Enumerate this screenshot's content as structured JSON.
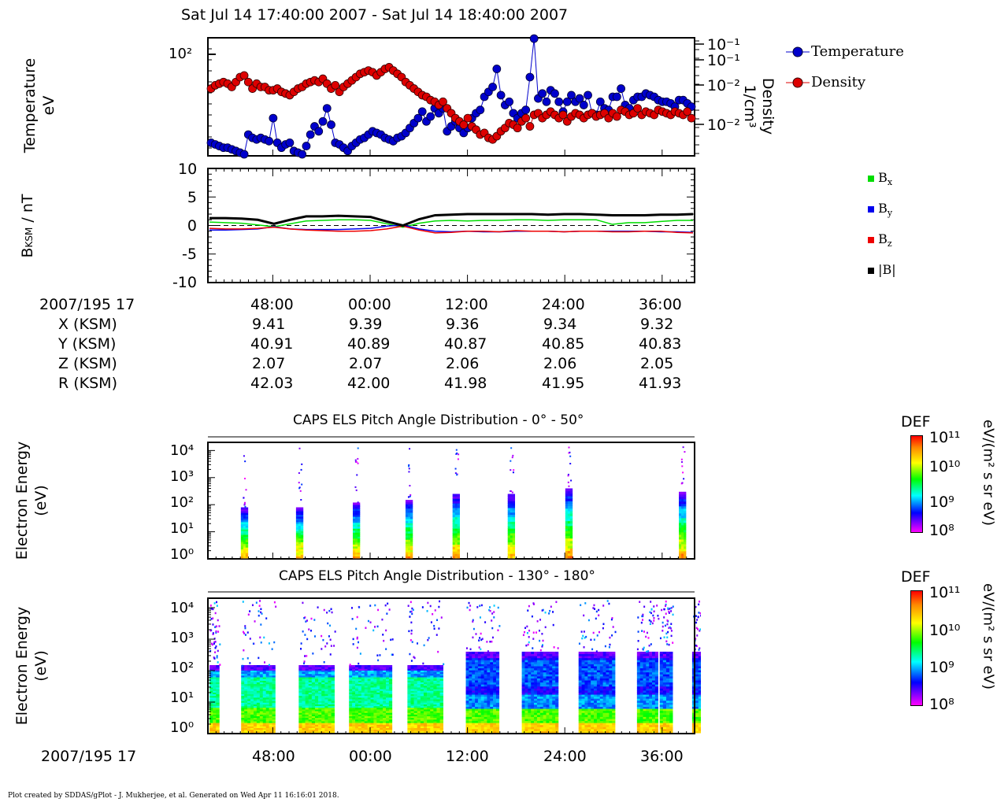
{
  "window": {
    "title": "Sat Jul 14 17:40:00 2007 - Sat Jul 14 18:40:00 2007",
    "footer": "Plot created by SDDAS/gPlot - J. Mukherjee, et al.  Generated on Wed Apr 11 16:16:01 2018."
  },
  "panel1": {
    "ylabel_line1": "Temperature",
    "ylabel_line2": "eV",
    "right_label_line1": "Density",
    "right_label_line2": "1/cm³",
    "left_tick": "10²",
    "right_ticks": [
      "10⁻¹",
      "10⁻¹",
      "10⁻²",
      "10⁻²"
    ]
  },
  "panel2": {
    "ylabel": "B",
    "ylabel_sub": "KSM",
    "ylabel_unit": " / nT",
    "yticks": [
      "10",
      "5",
      "0",
      "-5",
      "-10"
    ]
  },
  "ephemeris": {
    "header": "2007/195 17",
    "tick_labels": [
      "48:00",
      "00:00",
      "12:00",
      "24:00",
      "36:00"
    ],
    "rows": [
      {
        "label": "X (KSM)",
        "values": [
          "9.41",
          "9.39",
          "9.36",
          "9.34",
          "9.32"
        ]
      },
      {
        "label": "Y (KSM)",
        "values": [
          "40.91",
          "40.89",
          "40.87",
          "40.85",
          "40.83"
        ]
      },
      {
        "label": "Z (KSM)",
        "values": [
          "2.07",
          "2.07",
          "2.06",
          "2.06",
          "2.05"
        ]
      },
      {
        "label": "R (KSM)",
        "values": [
          "42.03",
          "42.00",
          "41.98",
          "41.95",
          "41.93"
        ]
      }
    ]
  },
  "spec1": {
    "title": "CAPS ELS Pitch Angle Distribution - 0° - 50°",
    "ylabel_line1": "Electron Energy",
    "ylabel_line2": "(eV)",
    "yticks": [
      "10⁴",
      "10³",
      "10²",
      "10¹",
      "10⁰"
    ]
  },
  "spec2": {
    "title": "CAPS ELS Pitch Angle Distribution - 130° - 180°",
    "ylabel_line1": "Electron Energy",
    "ylabel_line2": "(eV)",
    "yticks": [
      "10⁴",
      "10³",
      "10²",
      "10¹",
      "10⁰"
    ]
  },
  "bottom_axis": {
    "header": "2007/195 17",
    "tick_labels": [
      "48:00",
      "00:00",
      "12:00",
      "24:00",
      "36:00"
    ]
  },
  "colorbar": {
    "title": "DEF",
    "unit": "eV/(m² s sr eV)",
    "ticks": [
      "10¹¹",
      "10¹⁰",
      "10⁹",
      "10⁸"
    ]
  },
  "colors": {
    "temperature": "#0000cc",
    "density": "#dd0000",
    "bx": "#00dd00",
    "by": "#0000ee",
    "bz": "#ee0000",
    "bmag": "#000000"
  },
  "chart_data": [
    {
      "type": "line",
      "title": "",
      "xlabel": "",
      "ylabel": "Temperature eV",
      "y2label": "Density 1/cm³",
      "legend_position": "right",
      "series": [
        {
          "name": "Temperature",
          "color": "#0000cc",
          "values": [
            55,
            54,
            53,
            52,
            52,
            51,
            50,
            49,
            48,
            60,
            58,
            57,
            58,
            57,
            56,
            70,
            55,
            52,
            54,
            55,
            50,
            49,
            48,
            53,
            60,
            65,
            62,
            68,
            76,
            66,
            55,
            54,
            52,
            50,
            53,
            55,
            57,
            58,
            60,
            62,
            61,
            60,
            58,
            57,
            56,
            58,
            59,
            61,
            64,
            67,
            70,
            74,
            68,
            71,
            76,
            73,
            76,
            62,
            65,
            68,
            64,
            61,
            64,
            70,
            73,
            75,
            83,
            86,
            89,
            100,
            84,
            78,
            80,
            73,
            70,
            73,
            75,
            95,
            120,
            82,
            85,
            80,
            87,
            85,
            80,
            74,
            80,
            84,
            80,
            82,
            78,
            84,
            73,
            72,
            80,
            76,
            75,
            83,
            83,
            88,
            78,
            76,
            81,
            83,
            83,
            85,
            84,
            83,
            81,
            80,
            80,
            79,
            77,
            81,
            81,
            79,
            77
          ]
        },
        {
          "name": "Density",
          "color": "#dd0000",
          "values": [
            88,
            90,
            91,
            92,
            91,
            89,
            92,
            95,
            96,
            92,
            88,
            91,
            89,
            89,
            87,
            87,
            88,
            86,
            85,
            84,
            86,
            88,
            89,
            91,
            92,
            93,
            92,
            94,
            91,
            88,
            90,
            86,
            89,
            91,
            93,
            95,
            97,
            98,
            99,
            98,
            96,
            98,
            100,
            101,
            99,
            97,
            95,
            92,
            90,
            88,
            86,
            84,
            83,
            81,
            80,
            78,
            80,
            76,
            73,
            70,
            68,
            66,
            70,
            65,
            63,
            60,
            61,
            58,
            57,
            59,
            62,
            64,
            67,
            66,
            64,
            68,
            70,
            65,
            72,
            73,
            70,
            72,
            74,
            72,
            70,
            72,
            68,
            71,
            73,
            72,
            70,
            72,
            73,
            71,
            72,
            73,
            70,
            73,
            71,
            75,
            74,
            72,
            73,
            76,
            72,
            74,
            73,
            72,
            75,
            74,
            73,
            72,
            74,
            73,
            72,
            74,
            70
          ]
        }
      ],
      "scale": "log"
    },
    {
      "type": "line",
      "title": "",
      "xlabel": "",
      "ylabel": "B_KSM / nT",
      "ylim": [
        -10,
        10
      ],
      "grid": false,
      "legend_position": "right",
      "series": [
        {
          "name": "Bx",
          "color": "#00dd00",
          "values": [
            0.6,
            0.5,
            0.4,
            0.1,
            -0.2,
            0.3,
            0.8,
            0.9,
            1.0,
            1.0,
            0.9,
            0.3,
            -0.3,
            0.4,
            0.8,
            0.9,
            0.8,
            0.9,
            0.9,
            1.0,
            1.0,
            0.9,
            1.0,
            1.0,
            1.0,
            0.2,
            0.5,
            0.5,
            0.7,
            0.9,
            0.9
          ]
        },
        {
          "name": "By",
          "color": "#0000ee",
          "values": [
            -0.8,
            -0.8,
            -0.7,
            -0.6,
            -0.2,
            -0.6,
            -0.7,
            -0.7,
            -0.7,
            -0.6,
            -0.5,
            -0.1,
            0.1,
            -0.6,
            -1.0,
            -1.1,
            -1.0,
            -1.1,
            -1.1,
            -1.0,
            -1.0,
            -1.0,
            -1.1,
            -1.0,
            -1.0,
            -1.0,
            -1.0,
            -1.0,
            -1.1,
            -1.1,
            -1.2
          ]
        },
        {
          "name": "Bz",
          "color": "#ee0000",
          "values": [
            -0.5,
            -0.6,
            -0.6,
            -0.5,
            -0.3,
            -0.6,
            -0.8,
            -0.9,
            -1.0,
            -1.0,
            -0.9,
            -0.6,
            -0.1,
            -0.8,
            -1.3,
            -1.2,
            -1.0,
            -1.0,
            -1.1,
            -0.9,
            -1.0,
            -1.0,
            -1.1,
            -1.0,
            -1.0,
            -1.1,
            -1.1,
            -1.0,
            -1.0,
            -1.2,
            -1.3
          ]
        },
        {
          "name": "|B|",
          "color": "#000000",
          "values": [
            1.3,
            1.3,
            1.2,
            1.0,
            0.3,
            1.0,
            1.6,
            1.6,
            1.7,
            1.6,
            1.5,
            0.7,
            0.0,
            1.1,
            1.8,
            1.9,
            2.0,
            2.0,
            2.0,
            2.0,
            2.0,
            1.9,
            2.0,
            2.0,
            1.9,
            1.8,
            1.8,
            1.8,
            1.9,
            1.9,
            2.0
          ]
        }
      ]
    },
    {
      "type": "heatmap",
      "title": "CAPS ELS Pitch Angle Distribution - 0° - 50°",
      "ylabel": "Electron Energy (eV)",
      "ylim": [
        1,
        20000
      ],
      "scale": "log",
      "colorbar": {
        "label": "DEF eV/(m² s sr eV)",
        "range": [
          100000000.0,
          100000000000.0
        ]
      },
      "bursts": [
        {
          "center_minute": 44.5,
          "top_ev": 80
        },
        {
          "center_minute": 51.3,
          "top_ev": 80
        },
        {
          "center_minute": 58.3,
          "top_ev": 120
        },
        {
          "center_minute": 64.8,
          "top_ev": 150
        },
        {
          "center_minute": 70.6,
          "top_ev": 250
        },
        {
          "center_minute": 77.4,
          "top_ev": 250
        },
        {
          "center_minute": 84.5,
          "top_ev": 400
        },
        {
          "center_minute": 98.5,
          "top_ev": 300
        }
      ]
    },
    {
      "type": "heatmap",
      "title": "CAPS ELS Pitch Angle Distribution - 130° - 180°",
      "ylabel": "Electron Energy (eV)",
      "ylim": [
        1,
        20000
      ],
      "scale": "log",
      "colorbar": {
        "label": "DEF eV/(m² s sr eV)",
        "range": [
          100000000.0,
          100000000000.0
        ]
      },
      "blocks": [
        {
          "start_minute": 40.2,
          "end_minute": 41.4
        },
        {
          "start_minute": 44.1,
          "end_minute": 48.3
        },
        {
          "start_minute": 51.2,
          "end_minute": 55.6
        },
        {
          "start_minute": 57.4,
          "end_minute": 62.7
        },
        {
          "start_minute": 64.6,
          "end_minute": 69.0
        },
        {
          "start_minute": 71.8,
          "end_minute": 75.9
        },
        {
          "start_minute": 78.7,
          "end_minute": 83.2
        },
        {
          "start_minute": 85.7,
          "end_minute": 90.2
        },
        {
          "start_minute": 92.9,
          "end_minute": 95.5
        },
        {
          "start_minute": 95.7,
          "end_minute": 97.3
        },
        {
          "start_minute": 99.7,
          "end_minute": 101.6
        }
      ]
    }
  ]
}
